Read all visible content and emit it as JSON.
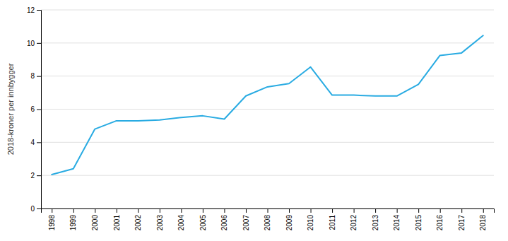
{
  "chart_data": {
    "type": "line",
    "x": [
      1998,
      1999,
      2000,
      2001,
      2002,
      2003,
      2004,
      2005,
      2006,
      2007,
      2008,
      2009,
      2010,
      2011,
      2012,
      2013,
      2014,
      2015,
      2016,
      2017,
      2018
    ],
    "values": [
      2.05,
      2.4,
      4.8,
      5.3,
      5.3,
      5.35,
      5.5,
      5.6,
      5.4,
      6.8,
      7.35,
      7.55,
      8.55,
      6.85,
      6.85,
      6.8,
      6.8,
      7.5,
      9.25,
      9.4,
      10.45
    ],
    "color": "#29ABE2",
    "ylabel": "2018-kroner per innbygger",
    "xlim": [
      1997.5,
      2018.5
    ],
    "xticks": [
      1998,
      1999,
      2000,
      2001,
      2002,
      2003,
      2004,
      2005,
      2006,
      2007,
      2008,
      2009,
      2010,
      2011,
      2012,
      2013,
      2014,
      2015,
      2016,
      2017,
      2018
    ],
    "ylim": [
      0,
      12
    ],
    "yticks": [
      0,
      2,
      4,
      6,
      8,
      10,
      12
    ],
    "grid": true
  }
}
